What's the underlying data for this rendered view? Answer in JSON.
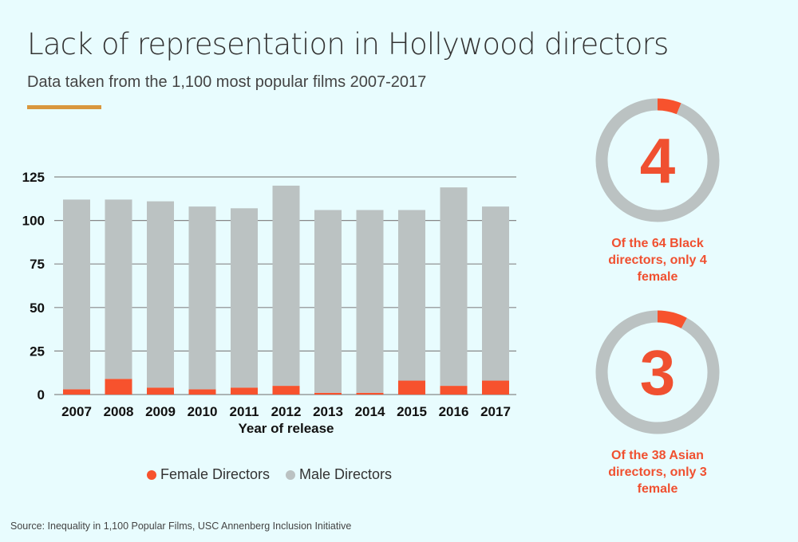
{
  "header": {
    "title": "Lack of representation in Hollywood directors",
    "subtitle": "Data taken from the 1,100 most popular films 2007-2017"
  },
  "colors": {
    "background": "#e8fcfe",
    "female": "#f7522d",
    "male": "#bbc2c2",
    "accent_bar": "#d9973e",
    "gridline": "#888888",
    "highlight_text": "#f05030"
  },
  "chart_data": [
    {
      "type": "bar",
      "stacked": true,
      "title": "",
      "xlabel": "Year of release",
      "ylabel": "",
      "ylim": [
        0,
        125
      ],
      "yticks": [
        0,
        25,
        50,
        75,
        100,
        125
      ],
      "grid": true,
      "legend_position": "bottom",
      "categories": [
        "2007",
        "2008",
        "2009",
        "2010",
        "2011",
        "2012",
        "2013",
        "2014",
        "2015",
        "2016",
        "2017"
      ],
      "series": [
        {
          "name": "Female Directors",
          "color": "#f7522d",
          "values": [
            3,
            9,
            4,
            3,
            4,
            5,
            1,
            1,
            8,
            5,
            8
          ]
        },
        {
          "name": "Male Directors",
          "color": "#bbc2c2",
          "values": [
            109,
            103,
            107,
            105,
            103,
            115,
            105,
            105,
            98,
            114,
            100
          ]
        }
      ]
    },
    {
      "type": "pie",
      "variant": "donut",
      "center_label": "4",
      "caption": "Of the 64 Black directors, only 4 female",
      "slices": [
        {
          "name": "Female",
          "value": 4,
          "color": "#f7522d"
        },
        {
          "name": "Male",
          "value": 60,
          "color": "#bbc2c2"
        }
      ]
    },
    {
      "type": "pie",
      "variant": "donut",
      "center_label": "3",
      "caption": "Of the 38 Asian directors, only 3 female",
      "slices": [
        {
          "name": "Female",
          "value": 3,
          "color": "#f7522d"
        },
        {
          "name": "Male",
          "value": 35,
          "color": "#bbc2c2"
        }
      ]
    }
  ],
  "legend": [
    {
      "label": "Female Directors",
      "color": "#f7522d"
    },
    {
      "label": "Male Directors",
      "color": "#bbc2c2"
    }
  ],
  "footer": {
    "source": "Source: Inequality in 1,100 Popular Films, USC Annenberg Inclusion Initiative"
  }
}
